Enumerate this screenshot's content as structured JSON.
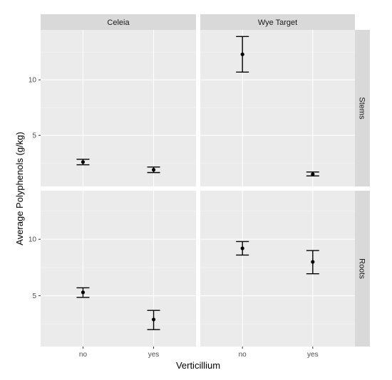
{
  "chart_data": {
    "type": "scatter",
    "xlabel": "Verticillium",
    "ylabel": "Average Polyphenols (g/kg)",
    "categories": [
      "no",
      "yes"
    ],
    "facet_columns": [
      "Celeia",
      "Wye Target"
    ],
    "facet_rows": [
      "Stems",
      "Roots"
    ],
    "row_scales": {
      "Stems": {
        "ylim": [
          0.4,
          14.5
        ],
        "yticks": [
          5,
          10
        ]
      },
      "Roots": {
        "ylim": [
          0.5,
          14.3
        ],
        "yticks": [
          5,
          10
        ]
      }
    },
    "panels": [
      {
        "column": "Celeia",
        "row": "Stems",
        "points": [
          {
            "x": "no",
            "y": 2.6,
            "ymin": 2.35,
            "ymax": 2.85
          },
          {
            "x": "yes",
            "y": 1.9,
            "ymin": 1.65,
            "ymax": 2.15
          }
        ]
      },
      {
        "column": "Wye Target",
        "row": "Stems",
        "points": [
          {
            "x": "no",
            "y": 12.3,
            "ymin": 10.7,
            "ymax": 13.9
          },
          {
            "x": "yes",
            "y": 1.5,
            "ymin": 1.35,
            "ymax": 1.7
          }
        ]
      },
      {
        "column": "Celeia",
        "row": "Roots",
        "points": [
          {
            "x": "no",
            "y": 5.3,
            "ymin": 4.85,
            "ymax": 5.7
          },
          {
            "x": "yes",
            "y": 2.9,
            "ymin": 2.0,
            "ymax": 3.7
          }
        ]
      },
      {
        "column": "Wye Target",
        "row": "Roots",
        "points": [
          {
            "x": "no",
            "y": 9.2,
            "ymin": 8.6,
            "ymax": 9.8
          },
          {
            "x": "yes",
            "y": 8.0,
            "ymin": 6.95,
            "ymax": 9.0
          }
        ]
      }
    ],
    "grid": true,
    "legend": "none"
  }
}
